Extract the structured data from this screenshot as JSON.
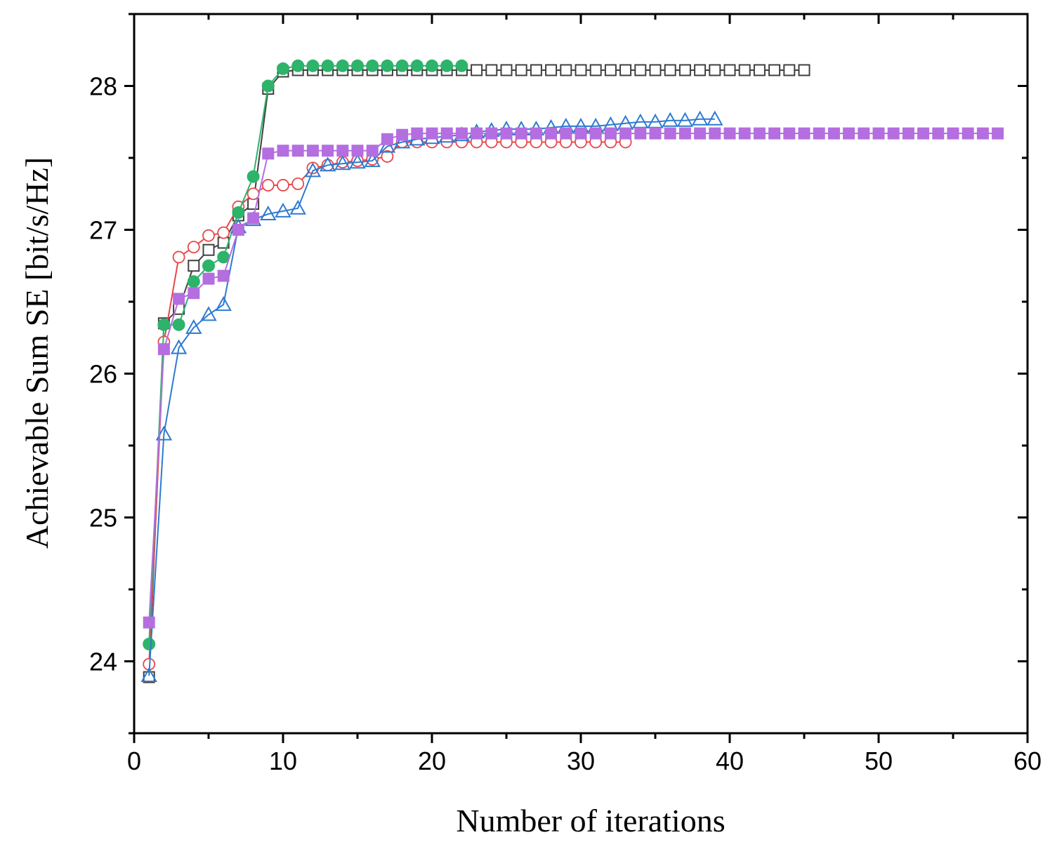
{
  "chart_data": {
    "type": "line",
    "title": "",
    "xlabel": "Number of iterations",
    "ylabel": "Achievable Sum SE [bit/s/Hz]",
    "xlim": [
      0,
      60
    ],
    "ylim": [
      23.5,
      28.5
    ],
    "xticks": [
      0,
      10,
      20,
      30,
      40,
      50,
      60
    ],
    "yticks": [
      24,
      25,
      26,
      27,
      28
    ],
    "grid": false,
    "legend": "none",
    "series": [
      {
        "name": "black open squares",
        "color": "#404040",
        "marker": "square-open",
        "x": [
          1,
          2,
          3,
          4,
          5,
          6,
          7,
          8,
          9,
          10,
          11,
          12,
          13,
          14,
          15,
          16,
          17,
          18,
          19,
          20,
          21,
          22,
          23,
          24,
          25,
          26,
          27,
          28,
          29,
          30,
          31,
          32,
          33,
          34,
          35,
          36,
          37,
          38,
          39,
          40,
          41,
          42,
          43,
          44,
          45
        ],
        "y": [
          23.89,
          26.35,
          26.45,
          26.75,
          26.86,
          26.91,
          27.1,
          27.18,
          27.98,
          28.1,
          28.11,
          28.11,
          28.11,
          28.11,
          28.11,
          28.11,
          28.11,
          28.11,
          28.11,
          28.11,
          28.11,
          28.11,
          28.11,
          28.11,
          28.11,
          28.11,
          28.11,
          28.11,
          28.11,
          28.11,
          28.11,
          28.11,
          28.11,
          28.11,
          28.11,
          28.11,
          28.11,
          28.11,
          28.11,
          28.11,
          28.11,
          28.11,
          28.11,
          28.11,
          28.11
        ]
      },
      {
        "name": "red open circles",
        "color": "#e8474a",
        "marker": "circle-open",
        "x": [
          1,
          2,
          3,
          4,
          5,
          6,
          7,
          8,
          9,
          10,
          11,
          12,
          13,
          14,
          15,
          16,
          17,
          18,
          19,
          20,
          21,
          22,
          23,
          24,
          25,
          26,
          27,
          28,
          29,
          30,
          31,
          32,
          33
        ],
        "y": [
          23.98,
          26.22,
          26.81,
          26.88,
          26.96,
          26.98,
          27.16,
          27.25,
          27.31,
          27.31,
          27.32,
          27.43,
          27.45,
          27.47,
          27.48,
          27.49,
          27.51,
          27.61,
          27.61,
          27.61,
          27.61,
          27.61,
          27.61,
          27.61,
          27.61,
          27.61,
          27.61,
          27.61,
          27.61,
          27.61,
          27.61,
          27.61,
          27.61
        ]
      },
      {
        "name": "green filled circles",
        "color": "#2db36a",
        "marker": "circle-filled",
        "x": [
          1,
          2,
          3,
          4,
          5,
          6,
          7,
          8,
          9,
          10,
          11,
          12,
          13,
          14,
          15,
          16,
          17,
          18,
          19,
          20,
          21,
          22
        ],
        "y": [
          24.12,
          26.34,
          26.34,
          26.64,
          26.75,
          26.81,
          27.12,
          27.37,
          28.0,
          28.12,
          28.14,
          28.14,
          28.14,
          28.14,
          28.14,
          28.14,
          28.14,
          28.14,
          28.14,
          28.14,
          28.14,
          28.14
        ]
      },
      {
        "name": "blue open triangles",
        "color": "#2e7ad1",
        "marker": "triangle-open",
        "x": [
          1,
          2,
          3,
          4,
          5,
          6,
          7,
          8,
          9,
          10,
          11,
          12,
          13,
          14,
          15,
          16,
          17,
          18,
          19,
          20,
          21,
          22,
          23,
          24,
          25,
          26,
          27,
          28,
          29,
          30,
          31,
          32,
          33,
          34,
          35,
          36,
          37,
          38,
          39
        ],
        "y": [
          23.9,
          25.58,
          26.18,
          26.32,
          26.41,
          26.48,
          27.02,
          27.07,
          27.11,
          27.13,
          27.15,
          27.41,
          27.45,
          27.46,
          27.47,
          27.48,
          27.58,
          27.61,
          27.63,
          27.64,
          27.65,
          27.66,
          27.68,
          27.69,
          27.7,
          27.7,
          27.7,
          27.71,
          27.72,
          27.72,
          27.72,
          27.73,
          27.74,
          27.75,
          27.75,
          27.76,
          27.76,
          27.77,
          27.77
        ]
      },
      {
        "name": "purple filled squares",
        "color": "#b46ee0",
        "marker": "square-filled",
        "x": [
          1,
          2,
          3,
          4,
          5,
          6,
          7,
          8,
          9,
          10,
          11,
          12,
          13,
          14,
          15,
          16,
          17,
          18,
          19,
          20,
          21,
          22,
          23,
          24,
          25,
          26,
          27,
          28,
          29,
          30,
          31,
          32,
          33,
          34,
          35,
          36,
          37,
          38,
          39,
          40,
          41,
          42,
          43,
          44,
          45,
          46,
          47,
          48,
          49,
          50,
          51,
          52,
          53,
          54,
          55,
          56,
          57,
          58
        ],
        "y": [
          24.27,
          26.17,
          26.52,
          26.56,
          26.66,
          26.68,
          27.0,
          27.08,
          27.53,
          27.55,
          27.55,
          27.55,
          27.55,
          27.55,
          27.55,
          27.55,
          27.63,
          27.66,
          27.67,
          27.67,
          27.67,
          27.67,
          27.67,
          27.67,
          27.67,
          27.67,
          27.67,
          27.67,
          27.67,
          27.67,
          27.67,
          27.67,
          27.67,
          27.67,
          27.67,
          27.67,
          27.67,
          27.67,
          27.67,
          27.67,
          27.67,
          27.67,
          27.67,
          27.67,
          27.67,
          27.67,
          27.67,
          27.67,
          27.67,
          27.67,
          27.67,
          27.67,
          27.67,
          27.67,
          27.67,
          27.67,
          27.67,
          27.67
        ]
      }
    ]
  }
}
